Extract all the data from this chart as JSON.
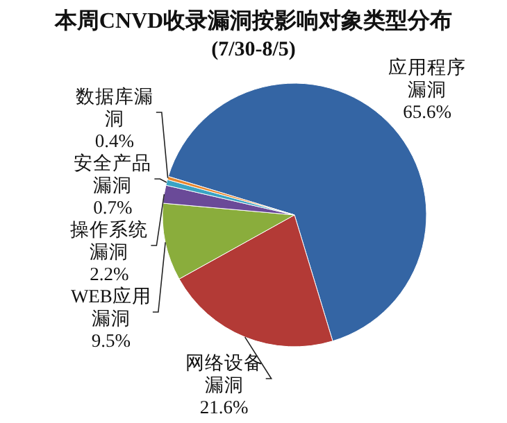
{
  "chart_data": {
    "type": "pie",
    "title": "本周CNVD收录漏洞按影响对象类型分布",
    "subtitle": "(7/30-8/5)",
    "categories": [
      "应用程序漏洞",
      "网络设备漏洞",
      "WEB应用漏洞",
      "操作系统漏洞",
      "安全产品漏洞",
      "数据库漏洞"
    ],
    "values": [
      65.6,
      21.6,
      9.5,
      2.2,
      0.7,
      0.4
    ],
    "value_labels": [
      "65.6%",
      "21.6%",
      "9.5%",
      "2.2%",
      "0.7%",
      "0.4%"
    ],
    "colors": [
      "#3465a4",
      "#b33a36",
      "#8aad3c",
      "#6a4a98",
      "#3aa3c4",
      "#e8862c"
    ],
    "legend": false
  }
}
